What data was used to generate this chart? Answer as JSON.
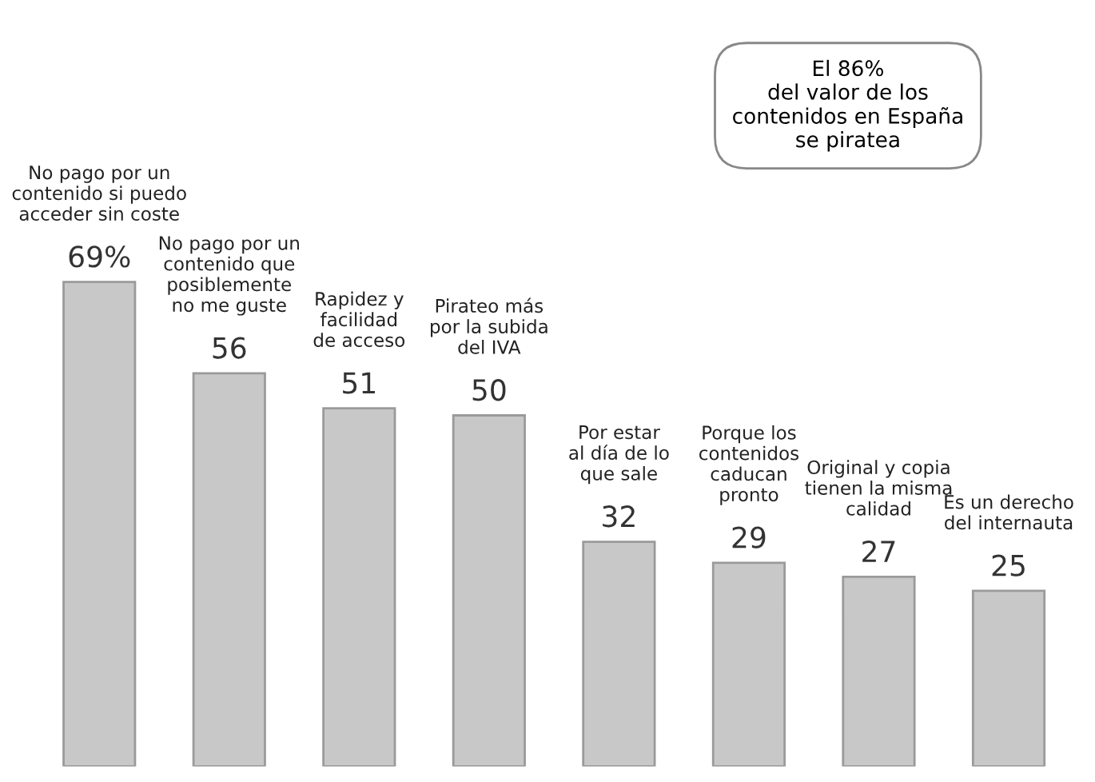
{
  "chart_data": {
    "type": "bar",
    "categories": [
      null,
      null,
      null,
      null,
      null,
      null,
      null,
      null
    ],
    "values": [
      69,
      56,
      51,
      50,
      32,
      29,
      27,
      25
    ],
    "value_labels": [
      "69%",
      "56",
      "51",
      "50",
      "32",
      "29",
      "27",
      "25"
    ],
    "color": "#c8c8c8",
    "annotations": [
      "No pago por un\ncontenido si puedo\nacceder sin coste",
      "No pago por un\ncontenido que\nposiblemente\nno me guste",
      "Rapidez y\nfacilidad\nde acceso",
      "Pirateo más\npor la subida\ndel IVA",
      "Por estar\nal día de lo\nque sale",
      "Porque los\ncontenidos\ncaducan\npronto",
      "Original y copia\ntienen la misma\ncalidad",
      "Es un derecho\ndel internauta",
      "El 86%\ndel valor de los\ncontenidos en España\nse piratea"
    ]
  }
}
